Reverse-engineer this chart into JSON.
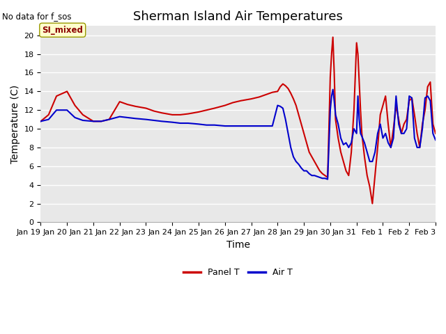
{
  "title": "Sherman Island Air Temperatures",
  "no_data_text": "No data for f_sos",
  "xlabel": "Time",
  "ylabel": "Temperature (C)",
  "ylim": [
    0,
    21
  ],
  "yticks": [
    0,
    2,
    4,
    6,
    8,
    10,
    12,
    14,
    16,
    18,
    20
  ],
  "background_color": "#e8e8e8",
  "annotation_label": "SI_mixed",
  "annotation_color": "#8b0000",
  "annotation_bg": "#ffffcc",
  "legend_entries": [
    "Panel T",
    "Air T"
  ],
  "legend_colors": [
    "#cc0000",
    "#0000cc"
  ],
  "panel_T_x": [
    19.0,
    19.3,
    19.6,
    20.0,
    20.3,
    20.6,
    21.0,
    21.3,
    21.6,
    22.0,
    22.3,
    22.6,
    23.0,
    23.3,
    23.6,
    24.0,
    24.3,
    24.6,
    25.0,
    25.3,
    25.6,
    26.0,
    26.3,
    26.6,
    27.0,
    27.3,
    27.6,
    27.8,
    28.0,
    28.1,
    28.2,
    28.3,
    28.4,
    28.5,
    28.6,
    28.7,
    28.8,
    28.9,
    29.0,
    29.1,
    29.2,
    29.3,
    29.4,
    29.5,
    29.6,
    29.7,
    29.8,
    29.9,
    30.0,
    30.05,
    30.1,
    30.15,
    30.2,
    30.3,
    30.4,
    30.5,
    30.6,
    30.7,
    30.8,
    30.9,
    31.0,
    31.05,
    31.1,
    31.15,
    31.2,
    31.3,
    31.4,
    31.5,
    31.6,
    31.7,
    31.8,
    31.9,
    32.0,
    32.1,
    32.2,
    32.3,
    32.4,
    32.5,
    32.6,
    32.7,
    32.8,
    32.9,
    33.0,
    33.1,
    33.2,
    33.3,
    33.4,
    33.5,
    33.6,
    33.7,
    33.8,
    33.9,
    34.0
  ],
  "panel_T_y": [
    10.8,
    11.5,
    13.5,
    14.0,
    12.5,
    11.5,
    10.8,
    10.8,
    11.0,
    12.9,
    12.6,
    12.4,
    12.2,
    11.9,
    11.7,
    11.5,
    11.5,
    11.6,
    11.8,
    12.0,
    12.2,
    12.5,
    12.8,
    13.0,
    13.2,
    13.4,
    13.7,
    13.9,
    14.0,
    14.5,
    14.8,
    14.6,
    14.3,
    13.8,
    13.2,
    12.5,
    11.5,
    10.5,
    9.5,
    8.5,
    7.5,
    7.0,
    6.5,
    6.0,
    5.5,
    5.2,
    5.0,
    4.8,
    15.5,
    18.0,
    19.8,
    16.0,
    11.0,
    9.0,
    7.5,
    6.5,
    5.5,
    5.0,
    7.5,
    12.0,
    19.2,
    18.0,
    15.0,
    12.0,
    9.5,
    7.0,
    5.0,
    3.8,
    2.0,
    5.0,
    8.0,
    11.5,
    12.5,
    13.5,
    10.5,
    8.0,
    10.0,
    12.5,
    11.0,
    9.5,
    10.5,
    11.0,
    13.0,
    13.3,
    11.5,
    9.5,
    8.0,
    10.5,
    12.0,
    14.5,
    15.0,
    10.5,
    9.5
  ],
  "air_T_x": [
    19.0,
    19.3,
    19.6,
    20.0,
    20.3,
    20.6,
    21.0,
    21.3,
    21.6,
    22.0,
    22.3,
    22.6,
    23.0,
    23.3,
    23.6,
    24.0,
    24.3,
    24.6,
    25.0,
    25.3,
    25.6,
    26.0,
    26.3,
    26.6,
    27.0,
    27.3,
    27.6,
    27.8,
    28.0,
    28.1,
    28.2,
    28.3,
    28.4,
    28.5,
    28.6,
    28.7,
    28.8,
    28.9,
    29.0,
    29.1,
    29.2,
    29.3,
    29.4,
    29.5,
    29.6,
    29.7,
    29.8,
    29.9,
    30.0,
    30.05,
    30.1,
    30.15,
    30.2,
    30.3,
    30.4,
    30.5,
    30.6,
    30.7,
    30.8,
    30.9,
    31.0,
    31.05,
    31.1,
    31.15,
    31.2,
    31.3,
    31.4,
    31.5,
    31.6,
    31.7,
    31.8,
    31.9,
    32.0,
    32.1,
    32.2,
    32.3,
    32.4,
    32.5,
    32.6,
    32.7,
    32.8,
    32.9,
    33.0,
    33.1,
    33.2,
    33.3,
    33.4,
    33.5,
    33.6,
    33.7,
    33.8,
    33.9,
    34.0
  ],
  "air_T_y": [
    10.8,
    11.0,
    12.0,
    12.0,
    11.2,
    10.9,
    10.8,
    10.8,
    11.0,
    11.3,
    11.2,
    11.1,
    11.0,
    10.9,
    10.8,
    10.7,
    10.6,
    10.6,
    10.5,
    10.4,
    10.4,
    10.3,
    10.3,
    10.3,
    10.3,
    10.3,
    10.3,
    10.3,
    12.5,
    12.4,
    12.2,
    11.0,
    9.5,
    8.0,
    7.0,
    6.5,
    6.2,
    5.8,
    5.5,
    5.5,
    5.2,
    5.0,
    5.0,
    4.9,
    4.8,
    4.7,
    4.7,
    4.6,
    12.0,
    13.5,
    14.2,
    13.0,
    11.5,
    10.5,
    9.0,
    8.3,
    8.5,
    8.0,
    8.5,
    10.0,
    9.5,
    13.5,
    11.0,
    9.5,
    9.2,
    8.5,
    7.5,
    6.5,
    6.5,
    7.5,
    9.5,
    10.5,
    9.0,
    9.5,
    8.5,
    8.0,
    9.0,
    13.5,
    10.5,
    9.5,
    9.5,
    10.0,
    13.5,
    13.3,
    9.0,
    8.0,
    8.0,
    10.0,
    13.3,
    13.5,
    13.0,
    9.5,
    8.8
  ],
  "xtick_positions": [
    19,
    20,
    21,
    22,
    23,
    24,
    25,
    26,
    27,
    28,
    29,
    30,
    31,
    32,
    33,
    34
  ],
  "xtick_labels": [
    "Jan 19",
    "Jan 20",
    "Jan 21",
    "Jan 22",
    "Jan 23",
    "Jan 24",
    "Jan 25",
    "Jan 26",
    "Jan 27",
    "Jan 28",
    "Jan 29",
    "Jan 30",
    "Jan 31",
    "Feb 1",
    "Feb 2",
    "Feb 3"
  ],
  "title_fontsize": 13,
  "axis_fontsize": 10,
  "tick_fontsize": 8,
  "linewidth": 1.5
}
